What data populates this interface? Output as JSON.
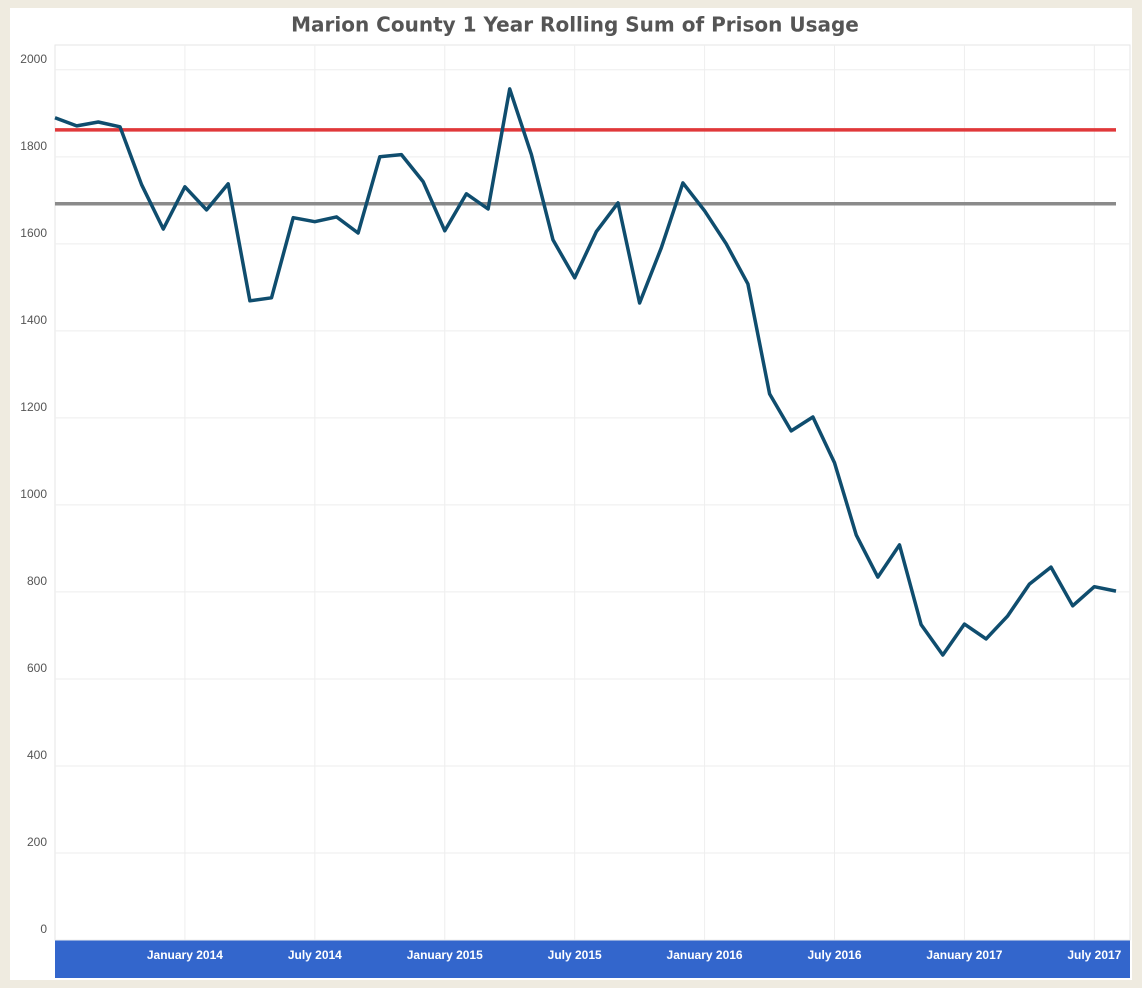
{
  "chart_data": {
    "type": "line",
    "title": "Marion County 1 Year Rolling Sum of Prison Usage",
    "x": [
      "2013-07",
      "2013-08",
      "2013-09",
      "2013-10",
      "2013-11",
      "2013-12",
      "2014-01",
      "2014-02",
      "2014-03",
      "2014-04",
      "2014-05",
      "2014-06",
      "2014-07",
      "2014-08",
      "2014-09",
      "2014-10",
      "2014-11",
      "2014-12",
      "2015-01",
      "2015-02",
      "2015-03",
      "2015-04",
      "2015-05",
      "2015-06",
      "2015-07",
      "2015-08",
      "2015-09",
      "2015-10",
      "2015-11",
      "2015-12",
      "2016-01",
      "2016-02",
      "2016-03",
      "2016-04",
      "2016-05",
      "2016-06",
      "2016-07",
      "2016-08",
      "2016-09",
      "2016-10",
      "2016-11",
      "2016-12",
      "2017-01",
      "2017-02",
      "2017-03",
      "2017-04",
      "2017-05",
      "2017-06",
      "2017-07",
      "2017-08"
    ],
    "series": [
      {
        "color": "#0f4d6e",
        "values": [
          1890,
          1871,
          1880,
          1869,
          1736,
          1634,
          1731,
          1678,
          1738,
          1469,
          1476,
          1660,
          1651,
          1662,
          1625,
          1800,
          1805,
          1743,
          1630,
          1715,
          1680,
          1956,
          1805,
          1609,
          1522,
          1628,
          1694,
          1464,
          1591,
          1740,
          1676,
          1600,
          1508,
          1255,
          1170,
          1202,
          1097,
          931,
          834,
          908,
          725,
          655,
          726,
          692,
          745,
          818,
          857,
          768,
          812,
          802
        ]
      }
    ],
    "reference_lines": [
      {
        "value": 1862,
        "color": "#e0383a"
      },
      {
        "value": 1692,
        "color": "#8a8a8a"
      }
    ],
    "xlim": [
      "2013-07",
      "2017-08"
    ],
    "xticks": [
      {
        "value": "2014-01",
        "label": "January 2014"
      },
      {
        "value": "2014-07",
        "label": "July 2014"
      },
      {
        "value": "2015-01",
        "label": "January 2015"
      },
      {
        "value": "2015-07",
        "label": "July 2015"
      },
      {
        "value": "2016-01",
        "label": "January 2016"
      },
      {
        "value": "2016-07",
        "label": "July 2016"
      },
      {
        "value": "2017-01",
        "label": "January 2017"
      },
      {
        "value": "2017-07",
        "label": "July 2017"
      }
    ],
    "ylim": [
      0,
      2057
    ],
    "yticks": [
      0,
      200,
      400,
      600,
      800,
      1000,
      1200,
      1400,
      1600,
      1800,
      2000
    ],
    "grid": true
  }
}
